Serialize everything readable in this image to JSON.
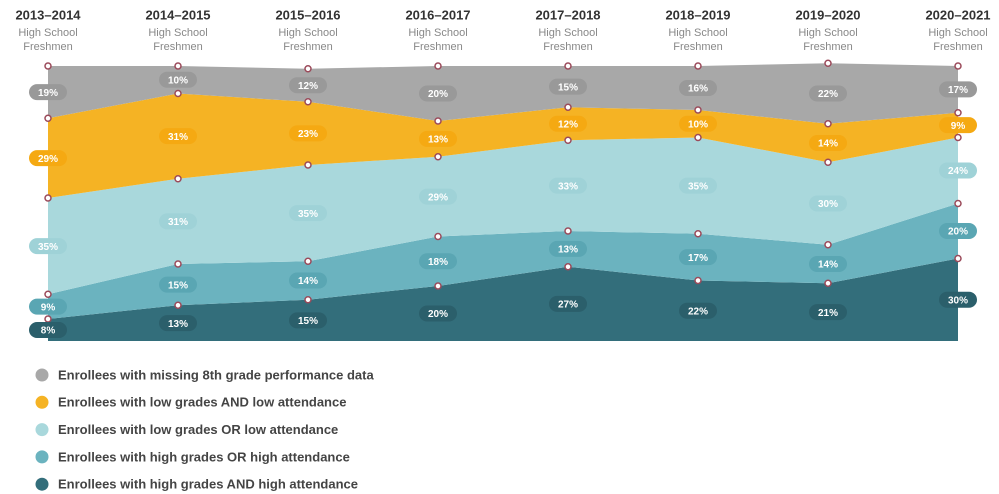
{
  "chart_data": {
    "type": "stacked_area",
    "categories": [
      "2013–2014",
      "2014–2015",
      "2015–2016",
      "2016–2017",
      "2017–2018",
      "2018–2019",
      "2019–2020",
      "2020–2021"
    ],
    "category_subtitle_lines": [
      "High School",
      "Freshmen"
    ],
    "ylim": [
      0,
      100
    ],
    "legend": "bottom-left",
    "series": [
      {
        "name": "Enrollees with high grades AND high attendance",
        "color": "#336e7b",
        "pill": "#2b5f6b",
        "values": [
          8,
          13,
          15,
          20,
          27,
          22,
          21,
          30
        ],
        "value_labels": [
          "8%",
          "13%",
          "15%",
          "20%",
          "27%",
          "22%",
          "21%",
          "30%"
        ]
      },
      {
        "name": "Enrollees with high grades OR high attendance",
        "color": "#6bb3bf",
        "pill": "#5aa6b3",
        "values": [
          9,
          15,
          14,
          18,
          13,
          17,
          14,
          20
        ],
        "value_labels": [
          "9%",
          "15%",
          "14%",
          "18%",
          "13%",
          "17%",
          "14%",
          "20%"
        ]
      },
      {
        "name": "Enrollees with low grades OR low attendance",
        "color": "#a9d8dc",
        "pill": "#9fd2d7",
        "values": [
          35,
          31,
          35,
          29,
          33,
          35,
          30,
          24
        ],
        "value_labels": [
          "35%",
          "31%",
          "35%",
          "29%",
          "33%",
          "35%",
          "30%",
          "24%"
        ]
      },
      {
        "name": "Enrollees with low grades AND low attendance",
        "color": "#f5b324",
        "pill": "#f5a912",
        "values": [
          29,
          31,
          23,
          13,
          12,
          10,
          14,
          9
        ],
        "value_labels": [
          "29%",
          "31%",
          "23%",
          "13%",
          "12%",
          "10%",
          "14%",
          "9%"
        ]
      },
      {
        "name": "Enrollees with missing 8th grade performance data",
        "color": "#a8a8a8",
        "pill": "#999999",
        "values": [
          19,
          10,
          12,
          20,
          15,
          16,
          22,
          17
        ],
        "value_labels": [
          "19%",
          "10%",
          "12%",
          "20%",
          "15%",
          "16%",
          "22%",
          "17%"
        ]
      }
    ]
  }
}
